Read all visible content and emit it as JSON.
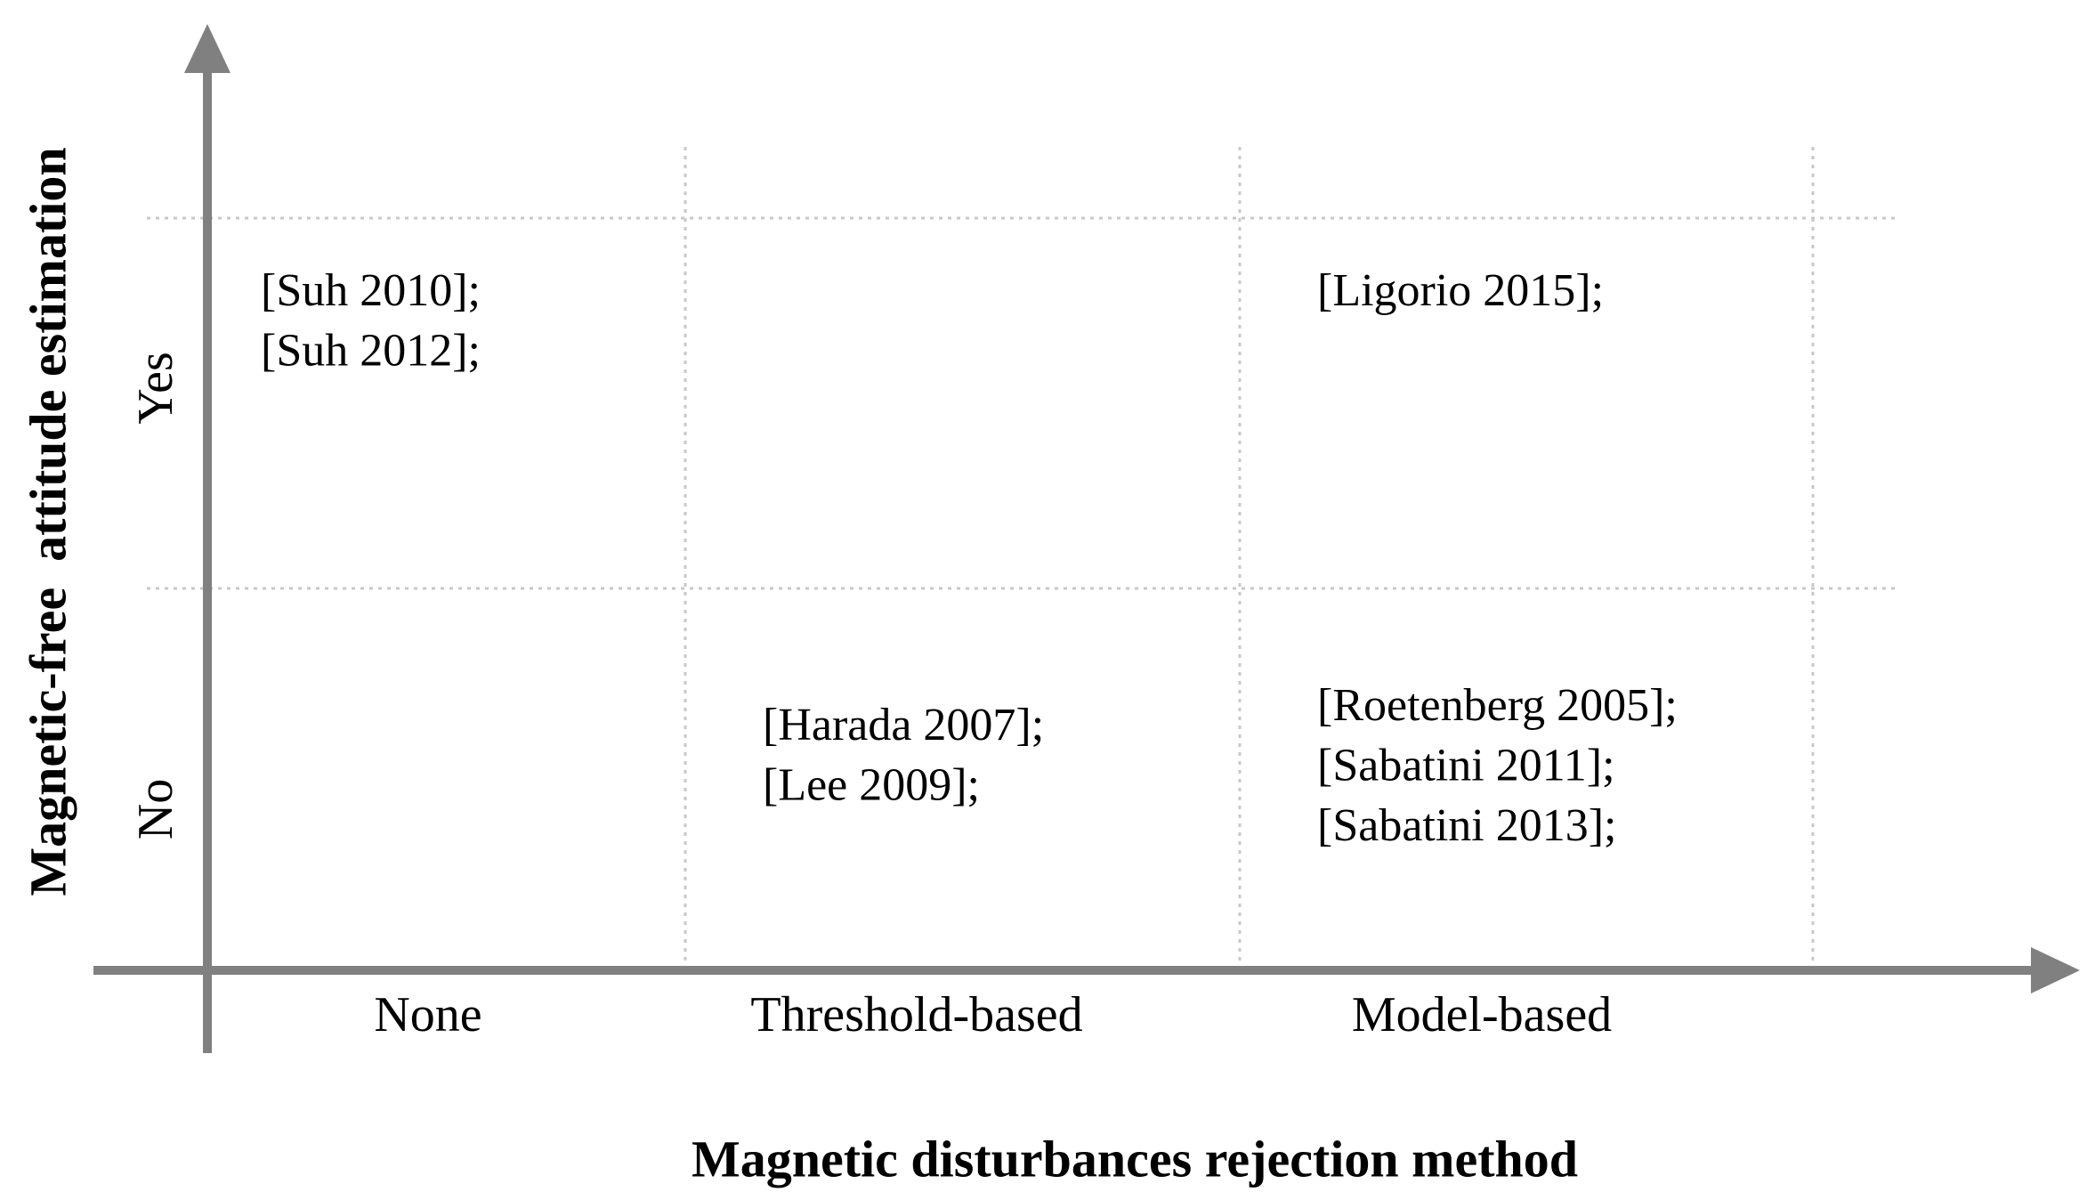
{
  "x_axis": {
    "title": "Magnetic disturbances rejection method",
    "categories": [
      "None",
      "Threshold-based",
      "Model-based"
    ]
  },
  "y_axis": {
    "title": "Magnetic-free  attitude estimation",
    "categories": [
      "Yes",
      "No"
    ]
  },
  "rows": [
    {
      "cells": [
        [
          "[Suh 2010];",
          "[Suh 2012];"
        ],
        [],
        [
          "[Ligorio 2015];"
        ]
      ]
    },
    {
      "cells": [
        [],
        [
          "[Harada 2007];",
          "[Lee 2009];"
        ],
        [
          "[Roetenberg 2005];",
          "[Sabatini 2011];",
          "[Sabatini 2013];"
        ]
      ]
    }
  ]
}
